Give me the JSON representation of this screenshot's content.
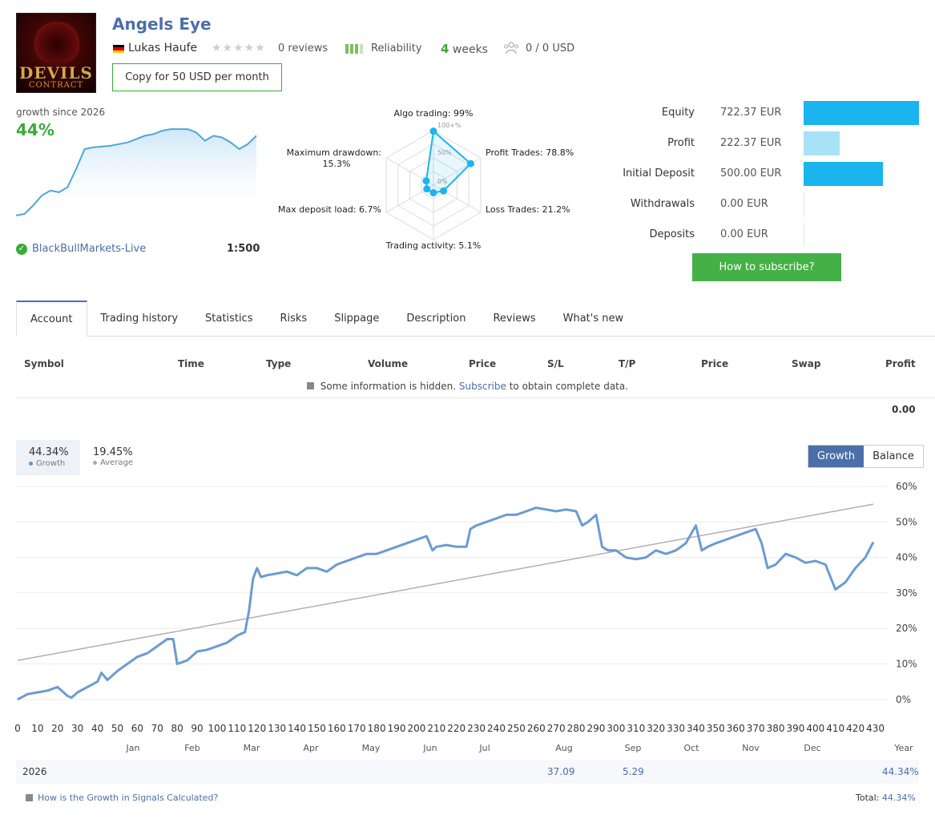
{
  "header": {
    "title": "Angels Eye",
    "author": "Lukas Haufe",
    "reviews": "0 reviews",
    "reliability_label": "Reliability",
    "weeks_num": "4",
    "weeks_label": "weeks",
    "subscribers": "0 / 0 USD",
    "copy_button": "Copy for 50 USD per month",
    "avatar_text_1": "DEVILS",
    "avatar_text_2": "CONTRACT"
  },
  "growth_summary": {
    "since": "growth since 2026",
    "value": "44%",
    "broker": "BlackBullMarkets-Live",
    "leverage": "1:500",
    "mini_series": [
      2,
      3,
      8,
      14,
      17,
      16,
      19,
      30,
      42,
      43,
      43.5,
      44,
      45,
      46,
      48,
      50,
      51,
      53,
      54,
      54,
      54,
      52,
      47,
      50,
      49,
      46,
      42,
      45,
      50
    ]
  },
  "radar": {
    "labels": {
      "algo": "Algo trading: 99%",
      "profit": "Profit Trades: 78.8%",
      "loss": "Loss Trades: 21.2%",
      "activity": "Trading activity: 5.1%",
      "deposit_load": "Max deposit load: 6.7%",
      "drawdown_1": "Maximum drawdown:",
      "drawdown_2": "15.3%"
    },
    "scale_100": "100+%",
    "scale_50": "50%",
    "scale_0": "0%",
    "values": [
      99,
      78.8,
      21.2,
      5.1,
      6.7,
      15.3
    ]
  },
  "stats": [
    {
      "label": "Equity",
      "value": "722.37 EUR",
      "ratio": 1.0,
      "color": "#1ab5ee"
    },
    {
      "label": "Profit",
      "value": "222.37 EUR",
      "ratio": 0.31,
      "color": "#a8e2f7"
    },
    {
      "label": "Initial Deposit",
      "value": "500.00 EUR",
      "ratio": 0.69,
      "color": "#1ab5ee"
    },
    {
      "label": "Withdrawals",
      "value": "0.00 EUR",
      "ratio": 0,
      "color": "#1ab5ee"
    },
    {
      "label": "Deposits",
      "value": "0.00 EUR",
      "ratio": 0,
      "color": "#1ab5ee"
    }
  ],
  "subscribe_button": "How to subscribe?",
  "tabs": [
    "Account",
    "Trading history",
    "Statistics",
    "Risks",
    "Slippage",
    "Description",
    "Reviews",
    "What's new"
  ],
  "table": {
    "headers": [
      "Symbol",
      "Time",
      "Type",
      "Volume",
      "Price",
      "S/L",
      "T/P",
      "Price",
      "Swap",
      "Profit"
    ],
    "hidden_pre": "Some information is hidden.",
    "hidden_link": "Subscribe",
    "hidden_post": "to obtain complete data.",
    "total_profit": "0.00"
  },
  "legend": {
    "growth_val": "44.34%",
    "growth_label": "Growth",
    "avg_val": "19.45%",
    "avg_label": "Average"
  },
  "toggle": {
    "growth": "Growth",
    "balance": "Balance"
  },
  "chart_data": {
    "type": "line",
    "x_ticks": [
      0,
      10,
      20,
      30,
      40,
      50,
      60,
      70,
      80,
      90,
      100,
      110,
      120,
      130,
      140,
      150,
      160,
      170,
      180,
      190,
      200,
      210,
      220,
      230,
      240,
      250,
      260,
      270,
      280,
      290,
      300,
      310,
      320,
      330,
      340,
      350,
      360,
      370,
      380,
      390,
      400,
      410,
      420,
      430
    ],
    "y_ticks": [
      "0%",
      "10%",
      "20%",
      "30%",
      "40%",
      "50%",
      "60%"
    ],
    "months": [
      "Jan",
      "Feb",
      "Mar",
      "Apr",
      "May",
      "Jun",
      "Jul",
      "Aug",
      "Sep",
      "Oct",
      "Nov",
      "Dec",
      "Year"
    ],
    "xlim": [
      0,
      433
    ],
    "ylim": [
      -5,
      60
    ],
    "series": [
      {
        "name": "Growth",
        "color": "#6b9bd2",
        "x": [
          0,
          5,
          10,
          15,
          20,
          25,
          27,
          30,
          35,
          40,
          42,
          45,
          50,
          55,
          60,
          65,
          70,
          75,
          78,
          80,
          85,
          90,
          95,
          100,
          105,
          110,
          114,
          116,
          118,
          120,
          122,
          125,
          130,
          135,
          140,
          145,
          150,
          155,
          160,
          165,
          170,
          175,
          180,
          185,
          190,
          195,
          200,
          205,
          208,
          210,
          215,
          220,
          225,
          227,
          230,
          235,
          240,
          245,
          250,
          255,
          260,
          265,
          270,
          275,
          280,
          283,
          286,
          290,
          293,
          296,
          300,
          305,
          310,
          315,
          320,
          325,
          330,
          335,
          340,
          343,
          346,
          350,
          355,
          360,
          365,
          370,
          373,
          376,
          380,
          385,
          390,
          395,
          400,
          405,
          410,
          415,
          420,
          425,
          429
        ],
        "y": [
          0,
          1.5,
          2,
          2.5,
          3.5,
          1,
          0.5,
          2,
          3.5,
          5,
          7.5,
          5.5,
          8,
          10,
          12,
          13,
          15,
          17,
          17,
          10,
          11,
          13.5,
          14,
          15,
          16,
          18,
          19,
          25,
          34,
          37,
          34.5,
          35,
          35.5,
          36,
          35,
          37,
          37,
          36,
          38,
          39,
          40,
          41,
          41,
          42,
          43,
          44,
          45,
          46,
          42,
          43,
          43.5,
          43,
          43,
          48,
          49,
          50,
          51,
          52,
          52,
          53,
          54,
          53.5,
          53,
          53.5,
          53,
          49,
          50,
          52,
          43,
          42,
          42,
          40,
          39.5,
          40,
          42,
          41,
          42,
          44,
          49,
          42,
          43,
          44,
          45,
          46,
          47,
          48,
          44,
          37,
          38,
          41,
          40,
          38.5,
          39,
          38,
          31,
          33,
          37,
          40,
          44.34
        ]
      },
      {
        "name": "Average",
        "color": "#b0b0b0",
        "x": [
          0,
          429
        ],
        "y": [
          11,
          55
        ]
      }
    ]
  },
  "year_row": {
    "year": "2026",
    "aug": "37.09",
    "sep": "5.29",
    "year_total": "44.34%"
  },
  "footer": {
    "help": "How is the Growth in Signals Calculated?",
    "total_label": "Total:",
    "total_value": "44.34%"
  }
}
